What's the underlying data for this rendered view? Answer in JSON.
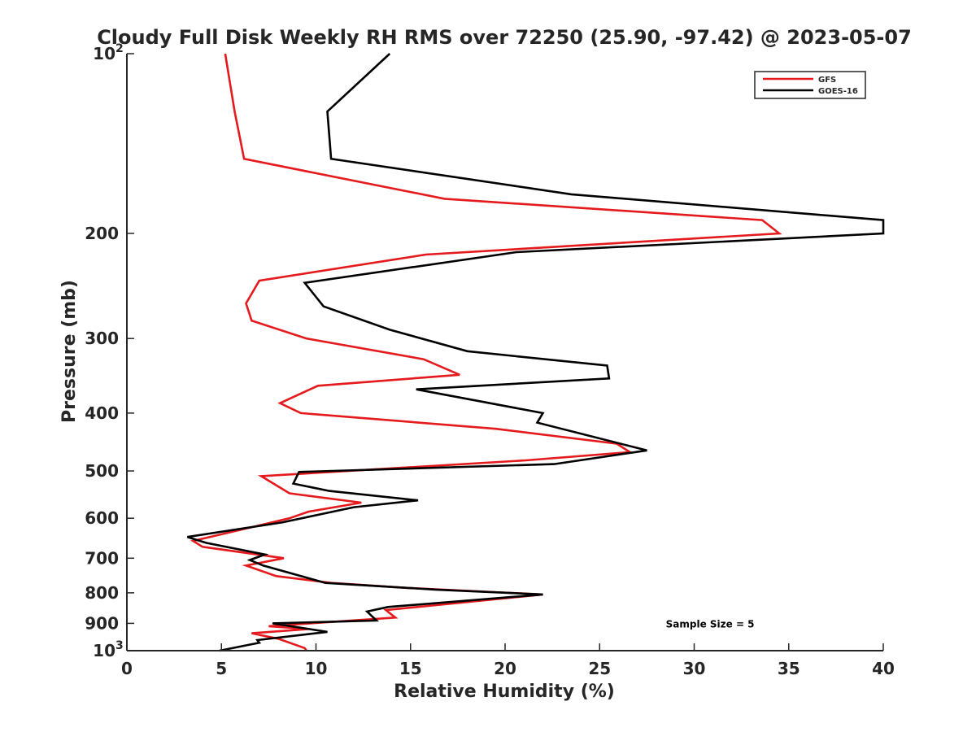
{
  "chart_data": {
    "type": "line",
    "title": "Cloudy Full Disk Weekly RH RMS over 72250 (25.90, -97.42) @ 2023-05-07",
    "xlabel": "Relative Humidity (%)",
    "ylabel": "Pressure (mb)",
    "xlim": [
      0,
      40
    ],
    "ylim": [
      100,
      1000
    ],
    "yscale": "log",
    "yreversed": true,
    "grid": false,
    "legend_position": "top-right",
    "xticks": [
      0,
      5,
      10,
      15,
      20,
      25,
      30,
      35,
      40
    ],
    "yticks": [
      {
        "value": 100,
        "label": "10",
        "exp": "2"
      },
      {
        "value": 200,
        "label": "200"
      },
      {
        "value": 300,
        "label": "300"
      },
      {
        "value": 400,
        "label": "400"
      },
      {
        "value": 500,
        "label": "500"
      },
      {
        "value": 600,
        "label": "600"
      },
      {
        "value": 700,
        "label": "700"
      },
      {
        "value": 800,
        "label": "800"
      },
      {
        "value": 900,
        "label": "900"
      },
      {
        "value": 1000,
        "label": "10",
        "exp": "3"
      }
    ],
    "series": [
      {
        "name": "GFS",
        "color": "#e41a1c",
        "points": [
          [
            5.2,
            100
          ],
          [
            5.7,
            125
          ],
          [
            6.2,
            150
          ],
          [
            16.8,
            175
          ],
          [
            33.6,
            190
          ],
          [
            34.5,
            200
          ],
          [
            15.8,
            217
          ],
          [
            7.0,
            240
          ],
          [
            6.3,
            262
          ],
          [
            6.6,
            280
          ],
          [
            9.5,
            300
          ],
          [
            15.7,
            325
          ],
          [
            17.6,
            345
          ],
          [
            10.1,
            360
          ],
          [
            8.1,
            385
          ],
          [
            9.2,
            400
          ],
          [
            19.5,
            425
          ],
          [
            25.9,
            450
          ],
          [
            26.6,
            465
          ],
          [
            21.1,
            480
          ],
          [
            7.1,
            510
          ],
          [
            8.6,
            545
          ],
          [
            12.4,
            565
          ],
          [
            9.6,
            585
          ],
          [
            8.6,
            600
          ],
          [
            6.7,
            620
          ],
          [
            3.5,
            655
          ],
          [
            4.0,
            670
          ],
          [
            8.3,
            700
          ],
          [
            6.3,
            720
          ],
          [
            7.9,
            750
          ],
          [
            10.8,
            770
          ],
          [
            14.8,
            785
          ],
          [
            22.0,
            805
          ],
          [
            13.7,
            855
          ],
          [
            14.2,
            880
          ],
          [
            7.5,
            910
          ],
          [
            9.6,
            920
          ],
          [
            6.6,
            935
          ],
          [
            8.0,
            955
          ],
          [
            9.4,
            990
          ],
          [
            9.5,
            1000
          ]
        ]
      },
      {
        "name": "GOES-16",
        "color": "#000000",
        "points": [
          [
            13.9,
            100
          ],
          [
            10.6,
            125
          ],
          [
            10.8,
            150
          ],
          [
            23.5,
            172
          ],
          [
            40.0,
            190
          ],
          [
            40.0,
            200
          ],
          [
            20.6,
            215
          ],
          [
            9.4,
            242
          ],
          [
            10.4,
            265
          ],
          [
            13.9,
            290
          ],
          [
            18.0,
            315
          ],
          [
            25.4,
            333
          ],
          [
            25.5,
            350
          ],
          [
            15.3,
            365
          ],
          [
            19.2,
            385
          ],
          [
            22.0,
            400
          ],
          [
            21.7,
            415
          ],
          [
            27.5,
            462
          ],
          [
            22.6,
            487
          ],
          [
            9.1,
            502
          ],
          [
            8.8,
            525
          ],
          [
            10.7,
            540
          ],
          [
            15.4,
            560
          ],
          [
            12.0,
            575
          ],
          [
            8.2,
            610
          ],
          [
            3.2,
            645
          ],
          [
            4.2,
            660
          ],
          [
            7.3,
            690
          ],
          [
            6.5,
            705
          ],
          [
            7.2,
            720
          ],
          [
            10.5,
            770
          ],
          [
            16.3,
            790
          ],
          [
            22.0,
            805
          ],
          [
            13.8,
            845
          ],
          [
            12.7,
            860
          ],
          [
            13.2,
            890
          ],
          [
            7.7,
            900
          ],
          [
            10.6,
            930
          ],
          [
            6.9,
            960
          ],
          [
            7.0,
            970
          ],
          [
            4.9,
            1000
          ]
        ]
      }
    ],
    "annotations": [
      {
        "text": "Sample Size = 5",
        "x": 28.5,
        "y": 900
      }
    ]
  }
}
